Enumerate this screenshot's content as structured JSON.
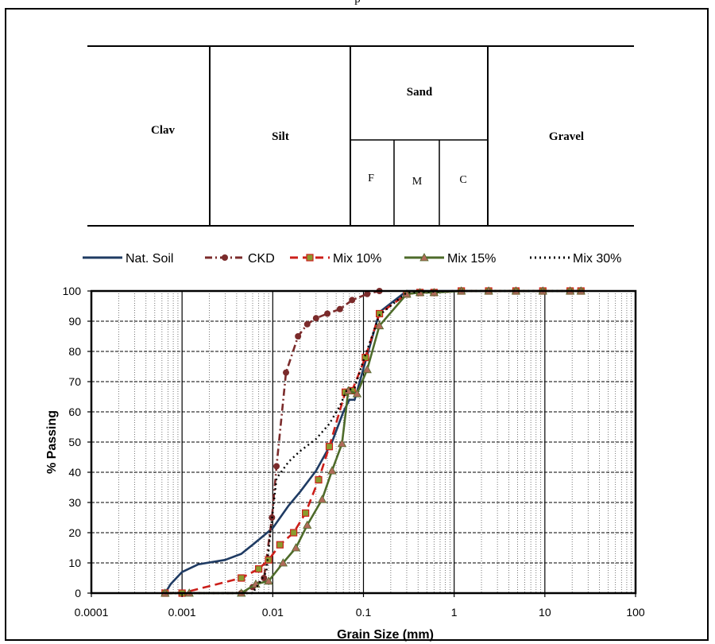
{
  "header_fragment": "p",
  "soil_classes": {
    "clay": "Clav",
    "silt": "Silt",
    "sand": "Sand",
    "sand_fine": "F",
    "sand_medium": "M",
    "sand_coarse": "C",
    "gravel": "Gravel"
  },
  "chart_data": {
    "type": "line",
    "xscale": "log",
    "xlim": [
      0.0001,
      100
    ],
    "ylim": [
      0,
      100
    ],
    "xlabel": "Grain Size (mm)",
    "ylabel": "% Passing",
    "x_tick_labels": [
      "0.0001",
      "0.001",
      "0.01",
      "0.1",
      "1",
      "10",
      "100"
    ],
    "y_tick_labels": [
      "0",
      "10",
      "20",
      "30",
      "40",
      "50",
      "60",
      "70",
      "80",
      "90",
      "100"
    ],
    "grid": true,
    "legend_position": "top",
    "series": [
      {
        "name": "Nat. Soil",
        "color": "#1f3b63",
        "style": "solid",
        "marker": "none",
        "points": [
          [
            0.00065,
            0
          ],
          [
            0.00075,
            3
          ],
          [
            0.001,
            7
          ],
          [
            0.0015,
            9.5
          ],
          [
            0.003,
            11
          ],
          [
            0.0045,
            13
          ],
          [
            0.006,
            16
          ],
          [
            0.01,
            21.5
          ],
          [
            0.015,
            29
          ],
          [
            0.02,
            33.5
          ],
          [
            0.03,
            40.5
          ],
          [
            0.045,
            50
          ],
          [
            0.06,
            60
          ],
          [
            0.07,
            64
          ],
          [
            0.08,
            64
          ],
          [
            0.15,
            93
          ],
          [
            0.3,
            100
          ],
          [
            2,
            100
          ],
          [
            25,
            100
          ]
        ]
      },
      {
        "name": "CKD",
        "color": "#7b2b2b",
        "style": "dashdot",
        "marker": "circle",
        "points": [
          [
            0.00065,
            0
          ],
          [
            0.001,
            0
          ],
          [
            0.0045,
            0
          ],
          [
            0.006,
            2
          ],
          [
            0.008,
            5
          ],
          [
            0.0098,
            25
          ],
          [
            0.011,
            42
          ],
          [
            0.014,
            73
          ],
          [
            0.019,
            85
          ],
          [
            0.024,
            89
          ],
          [
            0.03,
            91
          ],
          [
            0.04,
            92.5
          ],
          [
            0.055,
            94
          ],
          [
            0.075,
            97
          ],
          [
            0.11,
            99
          ],
          [
            0.15,
            100
          ]
        ]
      },
      {
        "name": "Mix 10%",
        "color": "#cc1f1a",
        "style": "dashed",
        "marker": "square",
        "points": [
          [
            0.00065,
            0
          ],
          [
            0.001,
            0
          ],
          [
            0.0045,
            5
          ],
          [
            0.007,
            8
          ],
          [
            0.009,
            11
          ],
          [
            0.012,
            16
          ],
          [
            0.017,
            20
          ],
          [
            0.023,
            26.5
          ],
          [
            0.032,
            37.5
          ],
          [
            0.042,
            48.5
          ],
          [
            0.063,
            66.5
          ],
          [
            0.075,
            67
          ],
          [
            0.105,
            78
          ],
          [
            0.15,
            92.5
          ],
          [
            0.3,
            99
          ],
          [
            0.42,
            99.5
          ],
          [
            0.6,
            99.5
          ],
          [
            1.2,
            100
          ],
          [
            2.4,
            100
          ],
          [
            4.8,
            100
          ],
          [
            9.5,
            100
          ],
          [
            19,
            100
          ],
          [
            25,
            100
          ]
        ]
      },
      {
        "name": "Mix 15%",
        "color": "#4e6b2a",
        "style": "solid",
        "marker": "triangle",
        "points": [
          [
            0.00065,
            0
          ],
          [
            0.0012,
            0
          ],
          [
            0.0045,
            0
          ],
          [
            0.0065,
            3
          ],
          [
            0.009,
            4
          ],
          [
            0.013,
            10
          ],
          [
            0.018,
            15
          ],
          [
            0.024,
            22.5
          ],
          [
            0.035,
            31
          ],
          [
            0.045,
            40.5
          ],
          [
            0.058,
            49.5
          ],
          [
            0.068,
            67
          ],
          [
            0.085,
            66
          ],
          [
            0.11,
            74
          ],
          [
            0.15,
            88.5
          ],
          [
            0.3,
            99
          ],
          [
            0.42,
            99.5
          ],
          [
            0.6,
            99.5
          ],
          [
            1.2,
            100
          ],
          [
            2.4,
            100
          ],
          [
            4.8,
            100
          ],
          [
            9.5,
            100
          ],
          [
            19,
            100
          ],
          [
            25,
            100
          ]
        ]
      },
      {
        "name": "Mix 30%",
        "color": "#000000",
        "style": "dotted",
        "marker": "none",
        "points": [
          [
            0.00065,
            0
          ],
          [
            0.006,
            0
          ],
          [
            0.0085,
            7
          ],
          [
            0.0095,
            21
          ],
          [
            0.011,
            38
          ],
          [
            0.015,
            43.5
          ],
          [
            0.02,
            47
          ],
          [
            0.03,
            51
          ],
          [
            0.042,
            56
          ],
          [
            0.055,
            62
          ],
          [
            0.065,
            67
          ],
          [
            0.08,
            68
          ],
          [
            0.1,
            77
          ],
          [
            0.15,
            92
          ],
          [
            0.3,
            99.5
          ],
          [
            1,
            100
          ],
          [
            25,
            100
          ]
        ]
      }
    ]
  }
}
